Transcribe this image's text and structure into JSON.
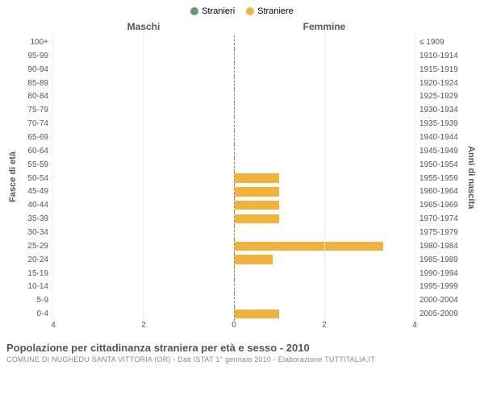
{
  "chart": {
    "type": "population-pyramid",
    "legend": [
      {
        "label": "Stranieri",
        "color": "#5e9e6e"
      },
      {
        "label": "Straniere",
        "color": "#f1b33c"
      }
    ],
    "column_headers": {
      "left": "Maschi",
      "right": "Femmine"
    },
    "axis_titles": {
      "left": "Fasce di età",
      "right": "Anni di nascita"
    },
    "x_max": 4,
    "x_ticks": [
      4,
      2,
      0,
      2,
      4
    ],
    "rows": [
      {
        "age": "100+",
        "birth": "≤ 1909",
        "m": 0,
        "f": 0
      },
      {
        "age": "95-99",
        "birth": "1910-1914",
        "m": 0,
        "f": 0
      },
      {
        "age": "90-94",
        "birth": "1915-1919",
        "m": 0,
        "f": 0
      },
      {
        "age": "85-89",
        "birth": "1920-1924",
        "m": 0,
        "f": 0
      },
      {
        "age": "80-84",
        "birth": "1925-1929",
        "m": 0,
        "f": 0
      },
      {
        "age": "75-79",
        "birth": "1930-1934",
        "m": 0,
        "f": 0
      },
      {
        "age": "70-74",
        "birth": "1935-1939",
        "m": 0,
        "f": 0
      },
      {
        "age": "65-69",
        "birth": "1940-1944",
        "m": 0,
        "f": 0
      },
      {
        "age": "60-64",
        "birth": "1945-1949",
        "m": 0,
        "f": 0
      },
      {
        "age": "55-59",
        "birth": "1950-1954",
        "m": 0,
        "f": 0
      },
      {
        "age": "50-54",
        "birth": "1955-1959",
        "m": 0,
        "f": 1
      },
      {
        "age": "45-49",
        "birth": "1960-1964",
        "m": 0,
        "f": 1
      },
      {
        "age": "40-44",
        "birth": "1965-1969",
        "m": 0,
        "f": 1
      },
      {
        "age": "35-39",
        "birth": "1970-1974",
        "m": 0,
        "f": 1
      },
      {
        "age": "30-34",
        "birth": "1975-1979",
        "m": 0,
        "f": 0
      },
      {
        "age": "25-29",
        "birth": "1980-1984",
        "m": 0,
        "f": 3.3
      },
      {
        "age": "20-24",
        "birth": "1985-1989",
        "m": 0,
        "f": 0.85
      },
      {
        "age": "15-19",
        "birth": "1990-1994",
        "m": 0,
        "f": 0
      },
      {
        "age": "10-14",
        "birth": "1995-1999",
        "m": 0,
        "f": 0
      },
      {
        "age": "5-9",
        "birth": "2000-2004",
        "m": 0,
        "f": 0
      },
      {
        "age": "0-4",
        "birth": "2005-2009",
        "m": 0,
        "f": 1
      }
    ],
    "colors": {
      "male_bar": "#5e9e6e",
      "female_bar": "#f1b33c",
      "grid": "#eeeeee",
      "center_line": "#8a8a4a",
      "text": "#555555",
      "background": "#ffffff"
    },
    "font_sizes": {
      "legend": 11,
      "header": 12,
      "row_label": 10,
      "tick": 10,
      "title": 13,
      "subtitle": 9
    }
  },
  "caption": {
    "title": "Popolazione per cittadinanza straniera per età e sesso - 2010",
    "subtitle": "COMUNE DI NUGHEDU SANTA VITTORIA (OR) - Dati ISTAT 1° gennaio 2010 - Elaborazione TUTTITALIA.IT"
  }
}
